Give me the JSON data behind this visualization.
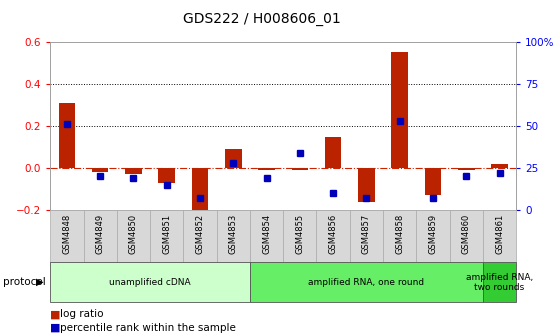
{
  "title": "GDS222 / H008606_01",
  "samples": [
    "GSM4848",
    "GSM4849",
    "GSM4850",
    "GSM4851",
    "GSM4852",
    "GSM4853",
    "GSM4854",
    "GSM4855",
    "GSM4856",
    "GSM4857",
    "GSM4858",
    "GSM4859",
    "GSM4860",
    "GSM4861"
  ],
  "log_ratio": [
    0.31,
    -0.02,
    -0.03,
    -0.07,
    -0.24,
    0.09,
    -0.01,
    -0.01,
    0.15,
    -0.16,
    0.55,
    -0.13,
    -0.01,
    0.02
  ],
  "percentile_rank": [
    51,
    20,
    19,
    15,
    7,
    28,
    19,
    34,
    10,
    7,
    53,
    7,
    20,
    22
  ],
  "proto_groups": [
    {
      "label": "unamplified cDNA",
      "start": 0,
      "end": 5,
      "color": "#ccffcc"
    },
    {
      "label": "amplified RNA, one round",
      "start": 6,
      "end": 12,
      "color": "#66ee66"
    },
    {
      "label": "amplified RNA,\ntwo rounds",
      "start": 13,
      "end": 13,
      "color": "#33cc33"
    }
  ],
  "ylim_left": [
    -0.2,
    0.6
  ],
  "ylim_right": [
    0,
    100
  ],
  "bar_color": "#bb2200",
  "dot_color": "#0000bb",
  "hline_color": "#cc2200",
  "dotted_line_values": [
    0.2,
    0.4
  ],
  "right_yticks": [
    0,
    25,
    50,
    75,
    100
  ],
  "right_yticklabels": [
    "0",
    "25",
    "50",
    "75",
    "100%"
  ],
  "left_yticks": [
    -0.2,
    0,
    0.2,
    0.4,
    0.6
  ]
}
